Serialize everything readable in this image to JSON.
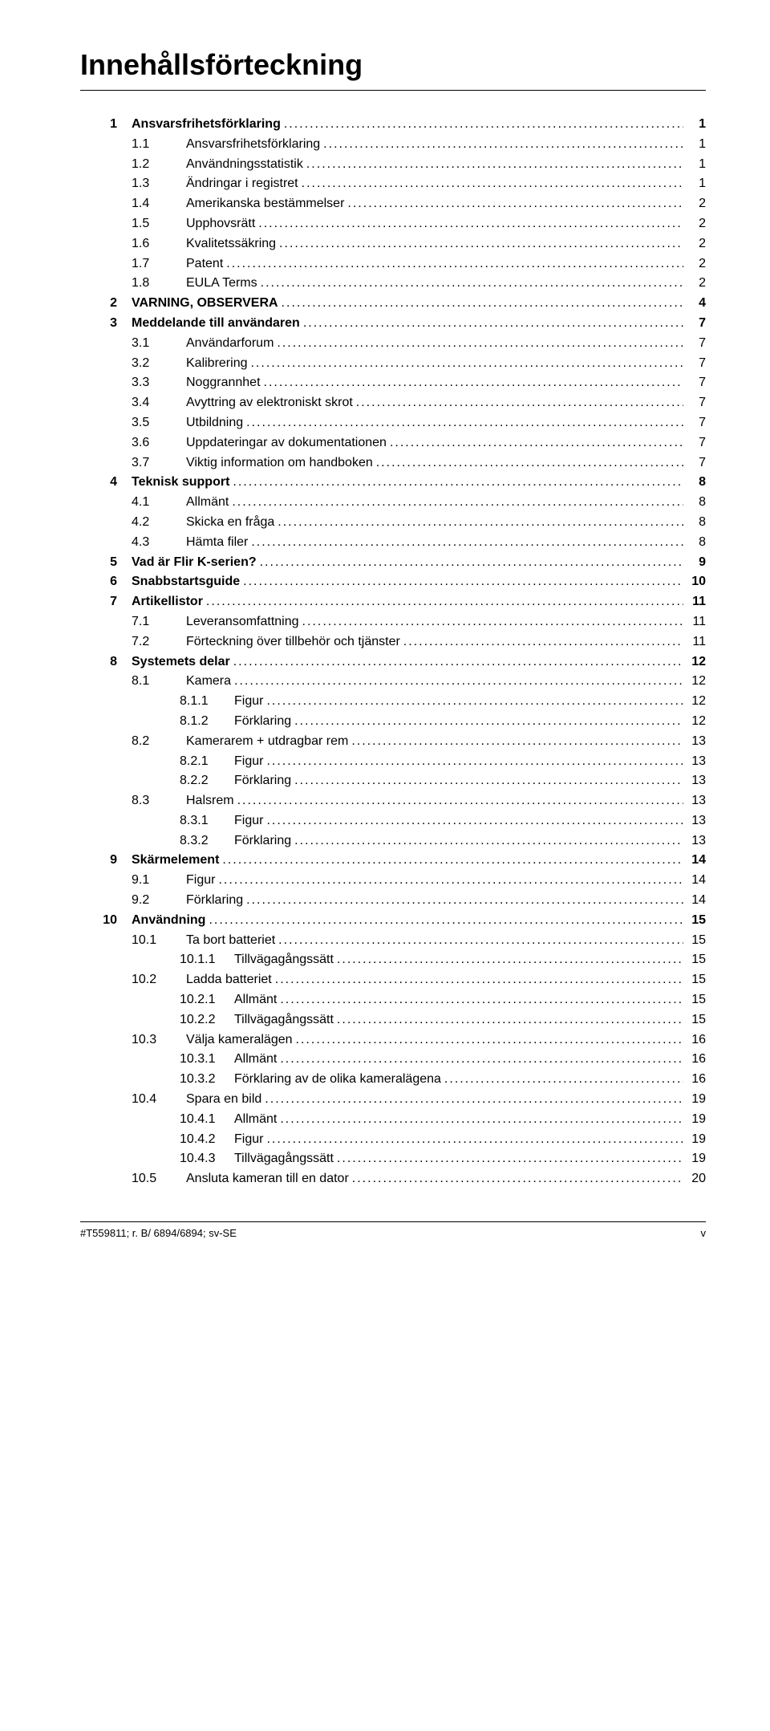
{
  "title": "Innehållsförteckning",
  "footer_left": "#T559811; r. B/ 6894/6894; sv-SE",
  "footer_right": "v",
  "entries": [
    {
      "level": 1,
      "num": "1",
      "label": "Ansvarsfrihetsförklaring",
      "page": "1"
    },
    {
      "level": 2,
      "num": "1.1",
      "label": "Ansvarsfrihetsförklaring",
      "page": "1"
    },
    {
      "level": 2,
      "num": "1.2",
      "label": "Användningsstatistik",
      "page": "1"
    },
    {
      "level": 2,
      "num": "1.3",
      "label": "Ändringar i registret",
      "page": "1"
    },
    {
      "level": 2,
      "num": "1.4",
      "label": "Amerikanska bestämmelser",
      "page": "2"
    },
    {
      "level": 2,
      "num": "1.5",
      "label": "Upphovsrätt",
      "page": "2"
    },
    {
      "level": 2,
      "num": "1.6",
      "label": "Kvalitetssäkring",
      "page": "2"
    },
    {
      "level": 2,
      "num": "1.7",
      "label": "Patent",
      "page": "2"
    },
    {
      "level": 2,
      "num": "1.8",
      "label": "EULA Terms",
      "page": "2"
    },
    {
      "level": 1,
      "num": "2",
      "label": "VARNING, OBSERVERA",
      "page": "4"
    },
    {
      "level": 1,
      "num": "3",
      "label": "Meddelande till användaren",
      "page": "7"
    },
    {
      "level": 2,
      "num": "3.1",
      "label": "Användarforum",
      "page": "7"
    },
    {
      "level": 2,
      "num": "3.2",
      "label": "Kalibrering",
      "page": "7"
    },
    {
      "level": 2,
      "num": "3.3",
      "label": "Noggrannhet",
      "page": "7"
    },
    {
      "level": 2,
      "num": "3.4",
      "label": "Avyttring av elektroniskt skrot",
      "page": "7"
    },
    {
      "level": 2,
      "num": "3.5",
      "label": "Utbildning",
      "page": "7"
    },
    {
      "level": 2,
      "num": "3.6",
      "label": "Uppdateringar av dokumentationen",
      "page": "7"
    },
    {
      "level": 2,
      "num": "3.7",
      "label": "Viktig information om handboken",
      "page": "7"
    },
    {
      "level": 1,
      "num": "4",
      "label": "Teknisk support",
      "page": "8"
    },
    {
      "level": 2,
      "num": "4.1",
      "label": "Allmänt",
      "page": "8"
    },
    {
      "level": 2,
      "num": "4.2",
      "label": "Skicka en fråga",
      "page": "8"
    },
    {
      "level": 2,
      "num": "4.3",
      "label": "Hämta filer",
      "page": "8"
    },
    {
      "level": 1,
      "num": "5",
      "label": "Vad är Flir K-serien?",
      "page": "9"
    },
    {
      "level": 1,
      "num": "6",
      "label": "Snabbstartsguide",
      "page": "10"
    },
    {
      "level": 1,
      "num": "7",
      "label": "Artikellistor",
      "page": "11"
    },
    {
      "level": 2,
      "num": "7.1",
      "label": "Leveransomfattning",
      "page": "11"
    },
    {
      "level": 2,
      "num": "7.2",
      "label": "Förteckning över tillbehör och tjänster",
      "page": "11"
    },
    {
      "level": 1,
      "num": "8",
      "label": "Systemets delar",
      "page": "12"
    },
    {
      "level": 2,
      "num": "8.1",
      "label": "Kamera",
      "page": "12"
    },
    {
      "level": 3,
      "num": "8.1.1",
      "label": "Figur",
      "page": "12"
    },
    {
      "level": 3,
      "num": "8.1.2",
      "label": "Förklaring",
      "page": "12"
    },
    {
      "level": 2,
      "num": "8.2",
      "label": "Kamerarem + utdragbar rem",
      "page": "13"
    },
    {
      "level": 3,
      "num": "8.2.1",
      "label": "Figur",
      "page": "13"
    },
    {
      "level": 3,
      "num": "8.2.2",
      "label": "Förklaring",
      "page": "13"
    },
    {
      "level": 2,
      "num": "8.3",
      "label": "Halsrem",
      "page": "13"
    },
    {
      "level": 3,
      "num": "8.3.1",
      "label": "Figur",
      "page": "13"
    },
    {
      "level": 3,
      "num": "8.3.2",
      "label": "Förklaring",
      "page": "13"
    },
    {
      "level": 1,
      "num": "9",
      "label": "Skärmelement",
      "page": "14"
    },
    {
      "level": 2,
      "num": "9.1",
      "label": "Figur",
      "page": "14"
    },
    {
      "level": 2,
      "num": "9.2",
      "label": "Förklaring",
      "page": "14"
    },
    {
      "level": 1,
      "num": "10",
      "label": "Användning",
      "page": "15"
    },
    {
      "level": 2,
      "num": "10.1",
      "label": "Ta bort batteriet",
      "page": "15"
    },
    {
      "level": 3,
      "num": "10.1.1",
      "label": "Tillvägagångssätt",
      "page": "15"
    },
    {
      "level": 2,
      "num": "10.2",
      "label": "Ladda batteriet",
      "page": "15"
    },
    {
      "level": 3,
      "num": "10.2.1",
      "label": "Allmänt",
      "page": "15"
    },
    {
      "level": 3,
      "num": "10.2.2",
      "label": "Tillvägagångssätt",
      "page": "15"
    },
    {
      "level": 2,
      "num": "10.3",
      "label": "Välja kameralägen",
      "page": "16"
    },
    {
      "level": 3,
      "num": "10.3.1",
      "label": "Allmänt",
      "page": "16"
    },
    {
      "level": 3,
      "num": "10.3.2",
      "label": "Förklaring av de olika kameralägena",
      "page": "16"
    },
    {
      "level": 2,
      "num": "10.4",
      "label": "Spara en bild",
      "page": "19"
    },
    {
      "level": 3,
      "num": "10.4.1",
      "label": "Allmänt",
      "page": "19"
    },
    {
      "level": 3,
      "num": "10.4.2",
      "label": "Figur",
      "page": "19"
    },
    {
      "level": 3,
      "num": "10.4.3",
      "label": "Tillvägagångssätt",
      "page": "19"
    },
    {
      "level": 2,
      "num": "10.5",
      "label": "Ansluta kameran till en dator",
      "page": "20"
    }
  ]
}
